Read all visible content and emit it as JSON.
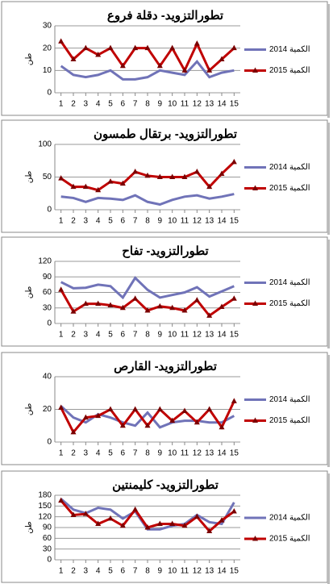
{
  "chart_data": [
    {
      "type": "line",
      "title": "تطورالتزويد- دقلة فروع",
      "y_label": "طن",
      "x": [
        1,
        2,
        3,
        4,
        5,
        6,
        7,
        8,
        9,
        10,
        11,
        12,
        13,
        14,
        15
      ],
      "xlim": [
        0.5,
        15.5
      ],
      "xticks": [
        1,
        2,
        3,
        4,
        5,
        6,
        7,
        8,
        9,
        10,
        11,
        12,
        13,
        14,
        15
      ],
      "ylim": [
        0,
        30
      ],
      "yticks": [
        0,
        10,
        20,
        30
      ],
      "grid": true,
      "series": [
        {
          "name": "2014 الكمية",
          "color": "#7073b8",
          "values": [
            12,
            8,
            7,
            8,
            10,
            6,
            6,
            7,
            10,
            9,
            8,
            14,
            7,
            9,
            10
          ]
        },
        {
          "name": "2015 الكمية",
          "color": "#c00000",
          "values": [
            23,
            15,
            20,
            17,
            20,
            12,
            20,
            20,
            12,
            20,
            10,
            22,
            10,
            15,
            20
          ]
        }
      ]
    },
    {
      "type": "line",
      "title": "تطورالتزويد- برتقال طمسون",
      "y_label": "طن",
      "x": [
        1,
        2,
        3,
        4,
        5,
        6,
        7,
        8,
        9,
        10,
        11,
        12,
        13,
        14,
        15
      ],
      "xlim": [
        0.5,
        15.5
      ],
      "xticks": [
        1,
        2,
        3,
        4,
        5,
        6,
        7,
        8,
        9,
        10,
        11,
        12,
        13,
        14,
        15
      ],
      "ylim": [
        0,
        100
      ],
      "yticks": [
        0,
        50,
        100
      ],
      "grid": true,
      "series": [
        {
          "name": "2014 الكمية",
          "color": "#7073b8",
          "values": [
            20,
            18,
            12,
            18,
            17,
            15,
            22,
            12,
            8,
            15,
            20,
            22,
            17,
            20,
            24
          ]
        },
        {
          "name": "2015 الكمية",
          "color": "#c00000",
          "values": [
            48,
            35,
            35,
            30,
            43,
            40,
            58,
            52,
            50,
            50,
            50,
            58,
            35,
            55,
            73
          ]
        }
      ]
    },
    {
      "type": "line",
      "title": "تطورالتزويد- تفاح",
      "y_label": "طن",
      "x": [
        1,
        2,
        3,
        4,
        5,
        6,
        7,
        8,
        9,
        10,
        11,
        12,
        13,
        14,
        15
      ],
      "xlim": [
        0.5,
        15.5
      ],
      "xticks": [
        1,
        2,
        3,
        4,
        5,
        6,
        7,
        8,
        9,
        10,
        11,
        12,
        13,
        14,
        15
      ],
      "ylim": [
        0,
        120
      ],
      "yticks": [
        0,
        30,
        60,
        90,
        120
      ],
      "grid": true,
      "series": [
        {
          "name": "2014 الكمية",
          "color": "#7073b8",
          "values": [
            80,
            68,
            69,
            75,
            72,
            50,
            88,
            65,
            50,
            55,
            60,
            70,
            52,
            62,
            72
          ]
        },
        {
          "name": "2015 الكمية",
          "color": "#c00000",
          "values": [
            65,
            23,
            38,
            38,
            35,
            30,
            48,
            25,
            33,
            30,
            25,
            45,
            15,
            32,
            48
          ]
        }
      ]
    },
    {
      "type": "line",
      "title": "تطورالتزويد- القارص",
      "y_label": "طن",
      "x": [
        1,
        2,
        3,
        4,
        5,
        6,
        7,
        8,
        9,
        10,
        11,
        12,
        13,
        14,
        15
      ],
      "xlim": [
        0.5,
        15.5
      ],
      "xticks": [
        1,
        2,
        3,
        4,
        5,
        6,
        7,
        8,
        9,
        10,
        11,
        12,
        13,
        14,
        15
      ],
      "ylim": [
        0,
        40
      ],
      "yticks": [
        0,
        20,
        40
      ],
      "grid": true,
      "series": [
        {
          "name": "2014 الكمية",
          "color": "#7073b8",
          "values": [
            22,
            15,
            12,
            17,
            15,
            12,
            10,
            18,
            9,
            12,
            13,
            13,
            12,
            12,
            16
          ]
        },
        {
          "name": "2015 الكمية",
          "color": "#c00000",
          "values": [
            21,
            6,
            15,
            16,
            20,
            10,
            20,
            10,
            20,
            13,
            19,
            12,
            20,
            9,
            25
          ]
        }
      ]
    },
    {
      "type": "line",
      "title": "تطورالتزويد- كليمنتين",
      "y_label": "طن",
      "x": [
        1,
        2,
        3,
        4,
        5,
        6,
        7,
        8,
        9,
        10,
        11,
        12,
        13,
        14,
        15
      ],
      "xlim": [
        0.5,
        15.5
      ],
      "xticks": [
        1,
        2,
        3,
        4,
        5,
        6,
        7,
        8,
        9,
        10,
        11,
        12,
        13,
        14,
        15
      ],
      "ylim": [
        0,
        180
      ],
      "yticks": [
        0,
        30,
        60,
        90,
        120,
        150,
        180
      ],
      "grid": true,
      "series": [
        {
          "name": "2014 الكمية",
          "color": "#7073b8",
          "values": [
            170,
            140,
            130,
            145,
            140,
            115,
            135,
            85,
            85,
            95,
            100,
            125,
            105,
            100,
            160
          ]
        },
        {
          "name": "2015 الكمية",
          "color": "#c00000",
          "values": [
            165,
            125,
            128,
            100,
            115,
            95,
            140,
            90,
            100,
            100,
            95,
            120,
            80,
            110,
            135
          ]
        }
      ]
    }
  ]
}
